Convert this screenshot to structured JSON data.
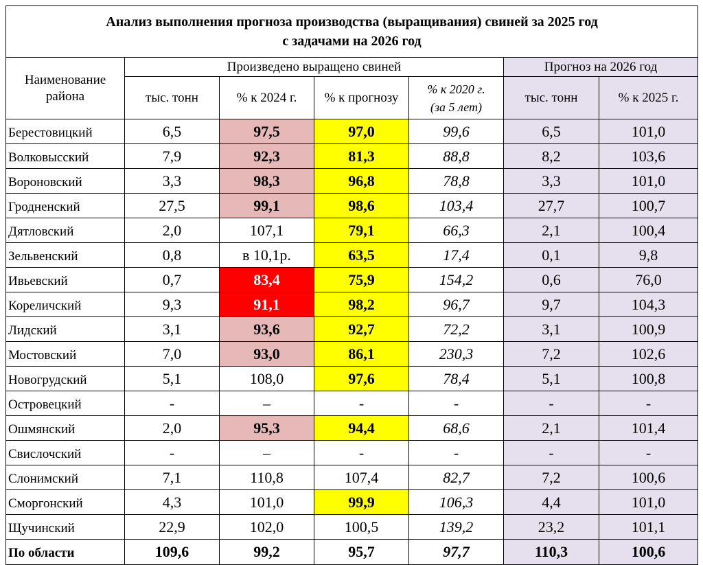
{
  "title": {
    "line1": "Анализ выполнения прогноза производства (выращивания) свиней за 2025 год",
    "line2": "с задачами на 2026 год"
  },
  "headers": {
    "district": "Наименование района",
    "produced_group": "Произведено выращено свиней",
    "forecast_group": "Прогноз на 2026 год",
    "tons": "тыс. тонн",
    "pct_2024": "% к 2024 г.",
    "pct_forecast": "% к прогнозу",
    "pct_2020_line1": "% к 2020 г.",
    "pct_2020_line2": "(за 5 лет)",
    "forecast_tons": "тыс. тонн",
    "pct_2025": "% к 2025 г."
  },
  "highlight_colors": {
    "pink": "#e6b8b8",
    "red": "#ff0000",
    "yellow": "#ffff00",
    "lavender": "#e6e0ee"
  },
  "rows": [
    {
      "district": "Берестовицкий",
      "tons": "6,5",
      "pct_2024": "97,5",
      "pct_forecast": "97,0",
      "pct_2020": "99,6",
      "forecast_tons": "6,5",
      "pct_2025": "101,0"
    },
    {
      "district": "Волковысский",
      "tons": "7,9",
      "pct_2024": "92,3",
      "pct_forecast": "81,3",
      "pct_2020": "88,8",
      "forecast_tons": "8,2",
      "pct_2025": "103,6"
    },
    {
      "district": "Вороновский",
      "tons": "3,3",
      "pct_2024": "98,3",
      "pct_forecast": "96,8",
      "pct_2020": "78,8",
      "forecast_tons": "3,3",
      "pct_2025": "101,0"
    },
    {
      "district": "Гродненский",
      "tons": "27,5",
      "pct_2024": "99,1",
      "pct_forecast": "98,6",
      "pct_2020": "103,4",
      "forecast_tons": "27,7",
      "pct_2025": "100,7"
    },
    {
      "district": "Дятловский",
      "tons": "2,0",
      "pct_2024": "107,1",
      "pct_forecast": "79,1",
      "pct_2020": "66,3",
      "forecast_tons": "2,1",
      "pct_2025": "100,4"
    },
    {
      "district": "Зельвенский",
      "tons": "0,8",
      "pct_2024": "в 10,1р.",
      "pct_forecast": "63,5",
      "pct_2020": "17,4",
      "forecast_tons": "0,1",
      "pct_2025": "9,8"
    },
    {
      "district": "Ивьевский",
      "tons": "0,7",
      "pct_2024": "83,4",
      "pct_forecast": "75,9",
      "pct_2020": "154,2",
      "forecast_tons": "0,6",
      "pct_2025": "76,0"
    },
    {
      "district": "Кореличский",
      "tons": "9,3",
      "pct_2024": "91,1",
      "pct_forecast": "98,2",
      "pct_2020": "96,7",
      "forecast_tons": "9,7",
      "pct_2025": "104,3"
    },
    {
      "district": "Лидский",
      "tons": "3,1",
      "pct_2024": "93,6",
      "pct_forecast": "92,7",
      "pct_2020": "72,2",
      "forecast_tons": "3,1",
      "pct_2025": "100,9"
    },
    {
      "district": "Мостовский",
      "tons": "7,0",
      "pct_2024": "93,0",
      "pct_forecast": "86,1",
      "pct_2020": "230,3",
      "forecast_tons": "7,2",
      "pct_2025": "102,6"
    },
    {
      "district": "Новогрудский",
      "tons": "5,1",
      "pct_2024": "108,0",
      "pct_forecast": "97,6",
      "pct_2020": "78,4",
      "forecast_tons": "5,1",
      "pct_2025": "100,8"
    },
    {
      "district": "Островецкий",
      "tons": "-",
      "pct_2024": "–",
      "pct_forecast": "-",
      "pct_2020": "-",
      "forecast_tons": "-",
      "pct_2025": "-"
    },
    {
      "district": "Ошмянский",
      "tons": "2,0",
      "pct_2024": "95,3",
      "pct_forecast": "94,4",
      "pct_2020": "68,6",
      "forecast_tons": "2,1",
      "pct_2025": "101,4"
    },
    {
      "district": "Свислочский",
      "tons": "-",
      "pct_2024": "–",
      "pct_forecast": "-",
      "pct_2020": "-",
      "forecast_tons": "-",
      "pct_2025": "-"
    },
    {
      "district": "Слонимский",
      "tons": "7,1",
      "pct_2024": "110,8",
      "pct_forecast": "107,4",
      "pct_2020": "82,7",
      "forecast_tons": "7,2",
      "pct_2025": "100,6"
    },
    {
      "district": "Сморгонский",
      "tons": "4,3",
      "pct_2024": "101,0",
      "pct_forecast": "99,9",
      "pct_2020": "106,3",
      "forecast_tons": "4,4",
      "pct_2025": "101,0"
    },
    {
      "district": "Щучинский",
      "tons": "22,9",
      "pct_2024": "102,0",
      "pct_forecast": "100,5",
      "pct_2020": "139,2",
      "forecast_tons": "23,2",
      "pct_2025": "101,1"
    }
  ],
  "total": {
    "district": "По области",
    "tons": "109,6",
    "pct_2024": "99,2",
    "pct_forecast": "95,7",
    "pct_2020": "97,7",
    "forecast_tons": "110,3",
    "pct_2025": "100,6"
  }
}
